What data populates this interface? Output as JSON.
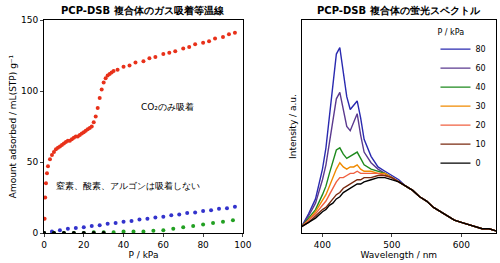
{
  "chart_data": [
    {
      "type": "scatter",
      "title": "PCP-DSB 複合体のガス吸着等温線",
      "x_label": "P / kPa",
      "y_label": "Amount adsorbed / mL(STP) g⁻¹",
      "xlim": [
        0,
        100
      ],
      "xticks": [
        0,
        20,
        40,
        60,
        80,
        100
      ],
      "ylim": [
        0,
        150
      ],
      "yticks": [
        0,
        50,
        100,
        150
      ],
      "marker": "circle",
      "annotations": [
        {
          "text": "CO₂のみ吸着"
        },
        {
          "text": "窒素、酸素、アルゴンは吸着しない"
        }
      ],
      "series": [
        {
          "color": "#e8311a",
          "x": [
            0,
            0.3,
            0.6,
            1,
            1.5,
            2,
            3,
            4,
            5,
            6,
            7,
            8,
            9,
            10,
            11,
            12,
            13,
            14,
            15,
            16,
            17,
            18,
            19,
            20,
            21,
            22,
            23,
            24,
            25,
            26,
            27,
            28,
            29,
            30,
            31,
            32,
            33,
            34,
            35,
            37,
            40,
            43,
            46,
            50,
            53,
            56,
            60,
            63,
            66,
            70,
            73,
            76,
            80,
            83,
            86,
            90,
            93,
            96
          ],
          "values": [
            0,
            10,
            25,
            35,
            42,
            47,
            52,
            55,
            57,
            59,
            60,
            61,
            62,
            63,
            64,
            65,
            65,
            66,
            67,
            68,
            68,
            69,
            70,
            71,
            72,
            73,
            74,
            75,
            78,
            82,
            88,
            95,
            101,
            106,
            109,
            111,
            112,
            113,
            114,
            115,
            117,
            118,
            120,
            121,
            123,
            124,
            126,
            127,
            128,
            130,
            131,
            133,
            134,
            135,
            137,
            138,
            140,
            141
          ]
        },
        {
          "color": "#3333cc",
          "x": [
            0,
            4,
            8,
            12,
            16,
            20,
            24,
            28,
            32,
            36,
            40,
            44,
            48,
            52,
            56,
            60,
            64,
            68,
            72,
            76,
            80,
            84,
            88,
            92,
            96
          ],
          "values": [
            0,
            1,
            2,
            3,
            3.5,
            4,
            5,
            5.5,
            6.5,
            7,
            8,
            8.5,
            9.5,
            10,
            11,
            11.5,
            12.5,
            13,
            14,
            14.5,
            15.5,
            16,
            17,
            17.5,
            18.5
          ]
        },
        {
          "color": "#22a022",
          "x": [
            0,
            5,
            10,
            15,
            20,
            25,
            30,
            35,
            40,
            45,
            50,
            55,
            60,
            65,
            70,
            75,
            80,
            85,
            90,
            95
          ],
          "values": [
            0,
            0,
            0,
            0,
            0,
            0.5,
            0.5,
            0.5,
            1,
            1,
            1,
            1.5,
            2,
            3,
            4,
            5,
            6,
            7,
            8,
            9
          ]
        },
        {
          "color": "#000000",
          "x": [
            0,
            5,
            10,
            15,
            20,
            25,
            30
          ],
          "values": [
            0,
            0,
            0,
            0,
            0,
            0,
            0
          ]
        }
      ]
    },
    {
      "type": "line",
      "title": "PCP-DSB 複合体の蛍光スペクトル",
      "x_label": "Wavelength / nm",
      "y_label": "Intensity / a.u.",
      "xlim": [
        370,
        650
      ],
      "xticks": [
        400,
        500,
        600
      ],
      "ylim": [
        0,
        100
      ],
      "tick_labels": "x",
      "legend": "upper right",
      "legend_title": "P / kPa",
      "x": [
        370,
        380,
        390,
        400,
        405,
        410,
        415,
        420,
        425,
        430,
        435,
        440,
        445,
        450,
        455,
        460,
        470,
        480,
        490,
        500,
        510,
        520,
        530,
        540,
        550,
        560,
        570,
        580,
        590,
        600,
        610,
        620,
        630,
        640,
        650
      ],
      "series": [
        {
          "name": "80",
          "color": "#2a2ab0",
          "values": [
            3,
            9,
            16,
            30,
            40,
            55,
            72,
            84,
            87,
            76,
            64,
            58,
            60,
            62,
            54,
            44,
            36,
            31,
            29,
            27,
            25,
            22,
            20,
            17,
            15,
            12,
            10,
            8,
            6,
            5,
            4,
            3,
            2,
            2,
            1
          ]
        },
        {
          "name": "60",
          "color": "#5b3a8f",
          "values": [
            3,
            8,
            14,
            25,
            32,
            42,
            54,
            63,
            66,
            58,
            50,
            48,
            52,
            56,
            46,
            38,
            33,
            30,
            28,
            26,
            24,
            22,
            20,
            17,
            15,
            12,
            10,
            8,
            6,
            5,
            4,
            3,
            2,
            2,
            1
          ]
        },
        {
          "name": "40",
          "color": "#1e8a1e",
          "values": [
            3,
            7,
            11,
            18,
            22,
            28,
            34,
            39,
            40,
            37,
            35,
            36,
            37,
            38,
            35,
            32,
            30,
            29,
            28,
            26,
            24,
            22,
            20,
            17,
            15,
            12,
            10,
            8,
            6,
            5,
            4,
            3,
            2,
            2,
            1
          ]
        },
        {
          "name": "30",
          "color": "#f08a00",
          "values": [
            3,
            6,
            10,
            15,
            18,
            22,
            26,
            30,
            33,
            31,
            30,
            31,
            31,
            32,
            30,
            29,
            29,
            28,
            28,
            26,
            24,
            22,
            20,
            17,
            15,
            12,
            10,
            8,
            6,
            5,
            4,
            3,
            2,
            2,
            1
          ]
        },
        {
          "name": "20",
          "color": "#f06040",
          "values": [
            3,
            6,
            9,
            13,
            15,
            18,
            21,
            24,
            26,
            26,
            27,
            28,
            28,
            29,
            28,
            28,
            28,
            28,
            27,
            26,
            24,
            22,
            20,
            17,
            15,
            12,
            10,
            8,
            6,
            5,
            4,
            3,
            2,
            2,
            1
          ]
        },
        {
          "name": "10",
          "color": "#7a2a10",
          "values": [
            3,
            5,
            8,
            11,
            12,
            14,
            16,
            18,
            19,
            21,
            22,
            23,
            24,
            25,
            25,
            26,
            26,
            27,
            27,
            26,
            24,
            22,
            20,
            17,
            15,
            12,
            10,
            8,
            6,
            5,
            4,
            3,
            2,
            2,
            1
          ]
        },
        {
          "name": "0",
          "color": "#000000",
          "values": [
            3,
            5,
            7,
            10,
            11,
            13,
            14,
            16,
            17,
            19,
            20,
            21,
            22,
            23,
            23,
            24,
            25,
            26,
            26,
            25,
            24,
            22,
            20,
            17,
            15,
            12,
            10,
            8,
            6,
            5,
            4,
            3,
            2,
            2,
            1
          ]
        }
      ]
    }
  ]
}
